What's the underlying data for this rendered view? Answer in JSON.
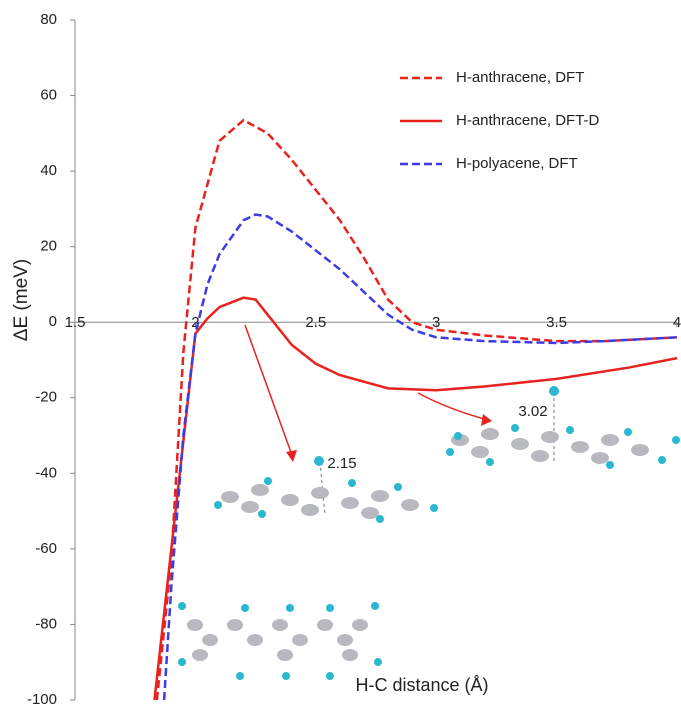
{
  "chart_data": {
    "type": "line",
    "xlabel": "H-C distance (Å)",
    "ylabel": "ΔE (meV)",
    "xlim": [
      1.5,
      4
    ],
    "ylim": [
      -100,
      80
    ],
    "xticks": [
      1.5,
      2,
      2.5,
      3,
      3.5,
      4
    ],
    "yticks": [
      -100,
      -80,
      -60,
      -40,
      -20,
      0,
      20,
      40,
      60,
      80
    ],
    "series": [
      {
        "name": "H-anthracene, DFT",
        "color": "#e8221e",
        "dash": "dashed",
        "x": [
          1.84,
          1.9,
          1.95,
          2.0,
          2.1,
          2.2,
          2.3,
          2.4,
          2.5,
          2.6,
          2.7,
          2.8,
          2.9,
          3.0,
          3.2,
          3.5,
          3.7,
          4.0
        ],
        "values": [
          -100,
          -63,
          -8,
          25,
          48,
          53.5,
          50,
          43,
          35,
          27,
          17,
          6,
          0,
          -2,
          -3.5,
          -5,
          -5,
          -4
        ]
      },
      {
        "name": "H-anthracene, DFT-D",
        "color": "#e8221e",
        "dash": "solid",
        "x": [
          1.83,
          1.9,
          2.0,
          2.05,
          2.1,
          2.2,
          2.25,
          2.3,
          2.4,
          2.5,
          2.6,
          2.8,
          3.0,
          3.2,
          3.5,
          3.8,
          4.0
        ],
        "values": [
          -100,
          -60,
          -3,
          1,
          4,
          6.5,
          6,
          2,
          -6,
          -11,
          -14,
          -17.5,
          -18,
          -17,
          -15,
          -12,
          -9.5
        ]
      },
      {
        "name": "H-polyacene, DFT",
        "color": "#3b3be8",
        "dash": "dashed",
        "x": [
          1.87,
          1.9,
          1.95,
          2.0,
          2.05,
          2.1,
          2.2,
          2.25,
          2.3,
          2.4,
          2.5,
          2.6,
          2.7,
          2.8,
          2.9,
          3.0,
          3.2,
          3.5,
          3.7,
          4.0
        ],
        "values": [
          -100,
          -70,
          -30,
          -3,
          10,
          18,
          27,
          28.5,
          28,
          24,
          19,
          14,
          8,
          2,
          -2,
          -4,
          -5,
          -5.5,
          -5,
          -4
        ]
      }
    ],
    "annotations": [
      "2.15",
      "3.02"
    ]
  }
}
